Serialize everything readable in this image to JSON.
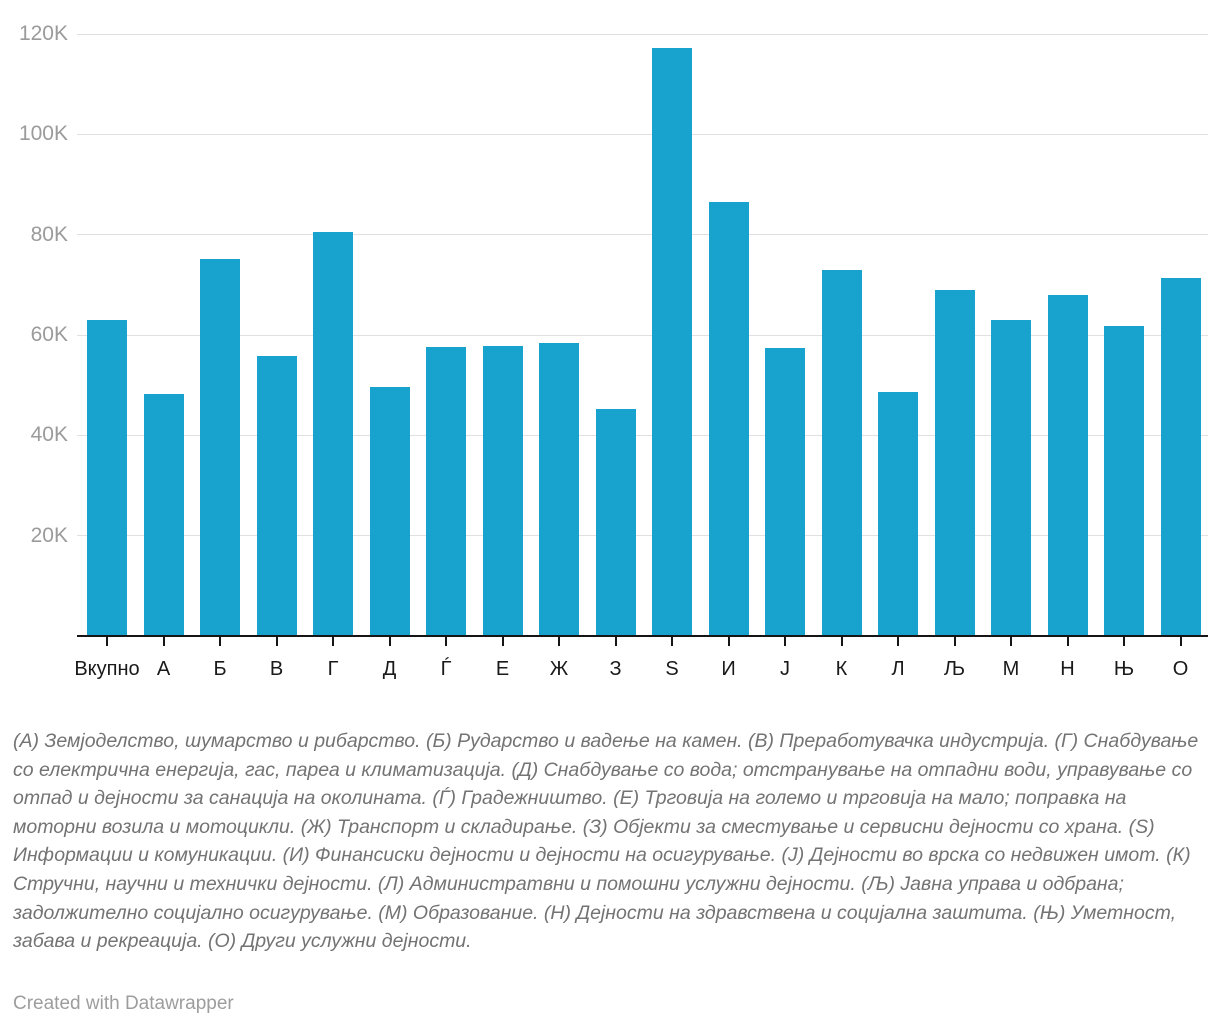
{
  "chart_data": {
    "type": "bar",
    "categories": [
      "Вкупно",
      "А",
      "Б",
      "В",
      "Г",
      "Д",
      "Ѓ",
      "Е",
      "Ж",
      "З",
      "Ѕ",
      "И",
      "Ј",
      "К",
      "Л",
      "Љ",
      "М",
      "Н",
      "Њ",
      "О"
    ],
    "values": [
      63000,
      48200,
      75200,
      55800,
      80600,
      49600,
      57600,
      57800,
      58400,
      45300,
      117200,
      86600,
      57400,
      73000,
      48700,
      69000,
      63000,
      68000,
      61800,
      71300
    ],
    "title": "",
    "xlabel": "",
    "ylabel": "",
    "ylim": [
      0,
      120000
    ],
    "y_ticks": [
      "20K",
      "40K",
      "60K",
      "80K",
      "100K",
      "120K"
    ],
    "y_tick_values": [
      20000,
      40000,
      60000,
      80000,
      100000,
      120000
    ],
    "grid": true,
    "legend_position": "none",
    "bar_color": "#18a2ce",
    "grid_color": "#e0e0e0",
    "y_label_color": "#9b9b9b",
    "x_label_color": "#1a1a1a",
    "axis_line_color": "#151515"
  },
  "footnote": {
    "text": "(А) Земјоделство, шумарство и рибарство. (Б) Рударство и вадење на камен. (В) Преработувачка индустрија. (Г) Снабдување со електрична енергија, гас, пареа и климатизација. (Д) Снабдување со вода; отстранување на отпадни води, управување со отпад и дејности за санација на околината. (Ѓ) Градежништво. (Е) Трговија на големо и трговија на мало; поправка на моторни возила и мотоцикли. (Ж) Транспорт и складирање. (З) Објекти за сместување и сервисни дејности со храна. (Ѕ) Информации и комуникации. (И) Финансиски дејности и дејности на осигурување. (Ј) Дејности во врска со недвижен имот. (К) Стручни, научни и технички дејности. (Л) Администратвни и помошни услужни дејности. (Љ) Јавна управа и одбрана; задолжително социјално осигурување. (М) Образование. (Н) Дејности на здравствена и социјална заштита. (Њ) Уметност, забава и рекреација. (О) Други услужни дејности."
  },
  "attribution": {
    "text": "Created with Datawrapper"
  }
}
